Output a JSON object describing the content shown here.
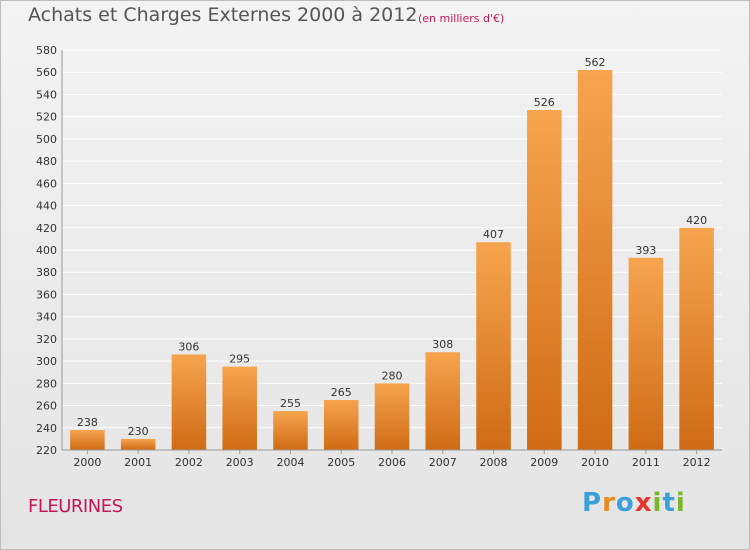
{
  "header": {
    "title": "Achats et Charges Externes 2000 à 2012",
    "subtitle": "(en milliers d'€)"
  },
  "footer": {
    "town": "FLEURINES",
    "logo_text": "Proxiti",
    "logo_letters": [
      "P",
      "r",
      "o",
      "x",
      "i",
      "t",
      "i"
    ],
    "logo_colors": [
      "#3aa0d8",
      "#e98c1e",
      "#3aa0d8",
      "#e4362b",
      "#7ab829",
      "#3aa0d8",
      "#7ab829"
    ]
  },
  "colors": {
    "bar_top": "#f7a44f",
    "bar_bottom": "#cf6b14",
    "grid": "#ffffff",
    "axis": "#999999",
    "title": "#555555",
    "accent": "#c2185b"
  },
  "chart_data": {
    "type": "bar",
    "title": "Achats et Charges Externes 2000 à 2012",
    "subtitle": "(en milliers d'€)",
    "categories": [
      "2000",
      "2001",
      "2002",
      "2003",
      "2004",
      "2005",
      "2006",
      "2007",
      "2008",
      "2009",
      "2010",
      "2011",
      "2012"
    ],
    "values": [
      238,
      230,
      306,
      295,
      255,
      265,
      280,
      308,
      407,
      526,
      562,
      393,
      420
    ],
    "ylim": [
      220,
      580
    ],
    "yticks": [
      220,
      240,
      260,
      280,
      300,
      320,
      340,
      360,
      380,
      400,
      420,
      440,
      460,
      480,
      500,
      520,
      540,
      560,
      580
    ],
    "grid": true,
    "data_labels": true,
    "xlabel": "",
    "ylabel": ""
  }
}
